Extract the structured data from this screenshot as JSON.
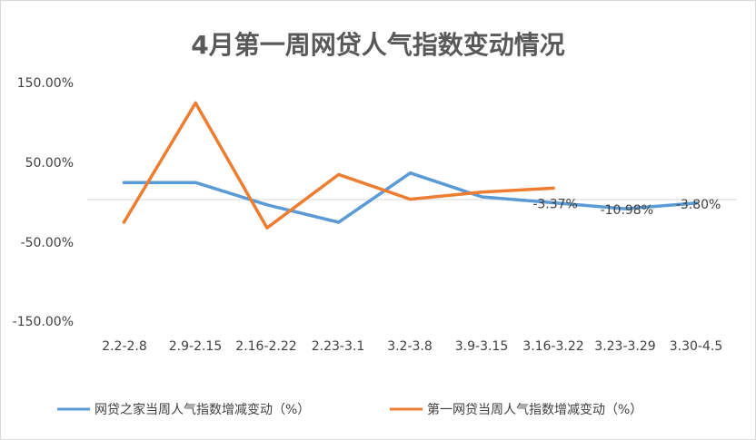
{
  "chart_data": {
    "type": "line",
    "title": "4月第一周网贷人气指数变动情况",
    "categories": [
      "2.2-2.8",
      "2.9-2.15",
      "2.16-2.22",
      "2.23-3.1",
      "3.2-3.8",
      "3.9-3.15",
      "3.16-3.22",
      "3.23-3.29",
      "3.30-4.5"
    ],
    "y_tick_labels": [
      "150.00%",
      "50.00%",
      "-50.00%",
      "-150.00%"
    ],
    "y_ticks": [
      150,
      50,
      -50,
      -150
    ],
    "ylim": [
      -150,
      150
    ],
    "grid": false,
    "legend_position": "bottom",
    "series": [
      {
        "name": "网贷之家当周人气指数增减变动（%）",
        "color": "#5B9BD5",
        "values": [
          22,
          22,
          -6,
          -28,
          34,
          4,
          -3.37,
          -10.98,
          -3.8
        ],
        "data_labels": [
          "",
          "",
          "",
          "",
          "",
          "",
          "-3.37%",
          "-10.98%",
          "-3.80%"
        ]
      },
      {
        "name": "第一网贷当周人气指数增减变动（%）",
        "color": "#ED7D31",
        "values": [
          -28,
          122,
          -35,
          32,
          1,
          10,
          15,
          null,
          null
        ],
        "data_labels": [
          "",
          "",
          "",
          "",
          "",
          "",
          "",
          "",
          ""
        ]
      }
    ]
  }
}
